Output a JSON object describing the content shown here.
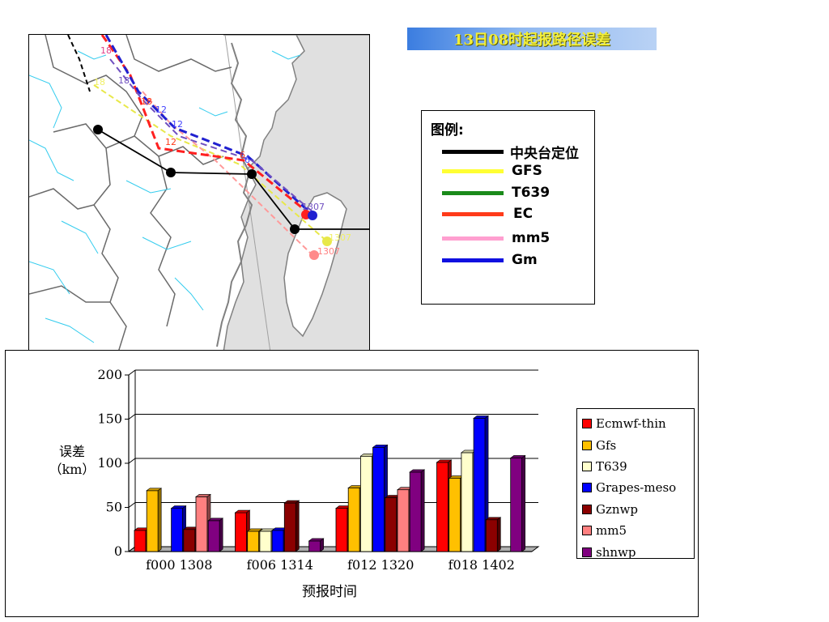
{
  "title_banner": "13日08时起报路径误差",
  "map_legend": {
    "title": "图例:",
    "items": [
      {
        "label": "中央台定位",
        "color": "#000000"
      },
      {
        "label": "GFS",
        "color": "#ffff33"
      },
      {
        "label": "T639",
        "color": "#1a8a1a"
      },
      {
        "label": "EC",
        "color": "#ff3b1a"
      },
      {
        "label": "mm5",
        "color": "#ff9fd0"
      },
      {
        "label": "Gm",
        "color": "#1010e0"
      }
    ]
  },
  "map": {
    "track_labels": [
      {
        "text": "18",
        "color": "#e0408a"
      },
      {
        "text": "18",
        "color": "#f0f066"
      },
      {
        "text": "18",
        "color": "#7050c0"
      },
      {
        "text": "18",
        "color": "#ff3b1a"
      },
      {
        "text": "12",
        "color": "#4040ff"
      },
      {
        "text": "12",
        "color": "#ff3b1a"
      },
      {
        "text": "12",
        "color": "#4040ff"
      },
      {
        "text": "6",
        "color": "#ff3b1a"
      },
      {
        "text": "6",
        "color": "#4040ff"
      },
      {
        "text": "1307",
        "color": "#7050c0"
      },
      {
        "text": "1307",
        "color": "#f0f066"
      },
      {
        "text": "1307",
        "color": "#ff8080"
      }
    ]
  },
  "chart_data": {
    "type": "bar",
    "ylabel": "误差\n（km）",
    "xlabel": "预报时间",
    "ylim": [
      0,
      200
    ],
    "yticks": [
      "0",
      "50",
      "100",
      "150",
      "200"
    ],
    "categories": [
      "f000  1308",
      "f006  1314",
      "f012  1320",
      "f018  1402"
    ],
    "grid": true,
    "legend": "right",
    "series": [
      {
        "name": "Ecmwf-thin",
        "color": "#ff0000",
        "values": [
          24,
          44,
          49,
          101
        ]
      },
      {
        "name": "Gfs",
        "color": "#ffc000",
        "values": [
          69,
          23,
          72,
          83
        ]
      },
      {
        "name": "T639",
        "color": "#ffffcc",
        "values": [
          0,
          23,
          108,
          112
        ]
      },
      {
        "name": "Grapes-meso",
        "color": "#0000ff",
        "values": [
          49,
          24,
          118,
          151
        ]
      },
      {
        "name": "Gznwp",
        "color": "#8b0000",
        "values": [
          25,
          55,
          61,
          36
        ]
      },
      {
        "name": "mm5",
        "color": "#ff8080",
        "values": [
          62,
          0,
          70,
          0
        ]
      },
      {
        "name": "shnwp",
        "color": "#800080",
        "values": [
          35,
          12,
          90,
          106
        ]
      }
    ]
  }
}
